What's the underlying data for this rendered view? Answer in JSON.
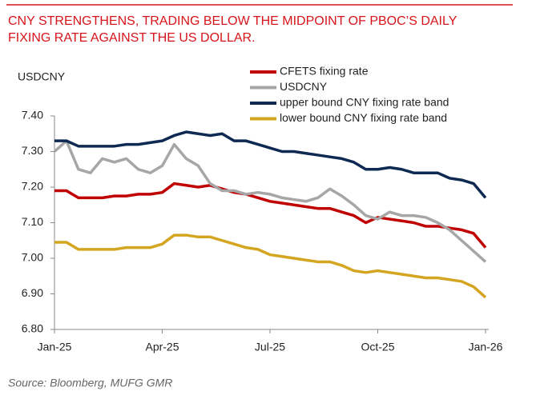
{
  "chart_data": {
    "type": "line",
    "title": [
      "CNY STRENGTHENS, TRADING BELOW THE MIDPOINT OF PBOC’S DAILY",
      "FIXING RATE AGAINST THE US DOLLAR."
    ],
    "y_label": "USDCNY",
    "source": "Source: Bloomberg, MUFG GMR",
    "legend": "top-right",
    "categories": [
      "Jan-25",
      null,
      null,
      null,
      null,
      null,
      null,
      null,
      null,
      "Apr-25",
      null,
      null,
      null,
      null,
      null,
      null,
      null,
      null,
      "Jul-25",
      null,
      null,
      null,
      null,
      null,
      null,
      null,
      null,
      "Oct-25",
      null,
      null,
      null,
      null,
      null,
      null,
      null,
      null,
      "Jan-26"
    ],
    "ylim": [
      6.8,
      7.4
    ],
    "yticks": [
      {
        "value": 6.8,
        "label": "6.80"
      },
      {
        "value": 6.9,
        "label": "6.90"
      },
      {
        "value": 7.0,
        "label": "7.00"
      },
      {
        "value": 7.1,
        "label": "7.10"
      },
      {
        "value": 7.2,
        "label": "7.20"
      },
      {
        "value": 7.3,
        "label": "7.30"
      },
      {
        "value": 7.4,
        "label": "7.40"
      }
    ],
    "series": [
      {
        "name": "CFETS fixing rate",
        "color": "#c00000",
        "values": [
          7.19,
          7.19,
          7.17,
          7.17,
          7.17,
          7.175,
          7.175,
          7.18,
          7.18,
          7.185,
          7.21,
          7.205,
          7.2,
          7.205,
          7.195,
          7.185,
          7.18,
          7.17,
          7.16,
          7.155,
          7.15,
          7.145,
          7.14,
          7.14,
          7.13,
          7.12,
          7.1,
          7.115,
          7.11,
          7.105,
          7.1,
          7.09,
          7.09,
          7.085,
          7.08,
          7.07,
          7.03
        ]
      },
      {
        "name": "USDCNY",
        "color": "#a6a6a6",
        "values": [
          7.3,
          7.33,
          7.25,
          7.24,
          7.28,
          7.27,
          7.28,
          7.25,
          7.24,
          7.26,
          7.32,
          7.28,
          7.26,
          7.21,
          7.19,
          7.19,
          7.18,
          7.185,
          7.18,
          7.17,
          7.165,
          7.16,
          7.17,
          7.195,
          7.175,
          7.15,
          7.12,
          7.11,
          7.13,
          7.12,
          7.12,
          7.115,
          7.1,
          7.08,
          7.05,
          7.02,
          6.99
        ]
      },
      {
        "name": "upper bound CNY fixing rate band",
        "color": "#0e2a52",
        "values": [
          7.33,
          7.33,
          7.315,
          7.315,
          7.315,
          7.315,
          7.32,
          7.32,
          7.325,
          7.33,
          7.345,
          7.355,
          7.35,
          7.345,
          7.35,
          7.33,
          7.33,
          7.32,
          7.31,
          7.3,
          7.3,
          7.295,
          7.29,
          7.285,
          7.28,
          7.27,
          7.25,
          7.25,
          7.255,
          7.25,
          7.24,
          7.24,
          7.24,
          7.225,
          7.22,
          7.21,
          7.17
        ]
      },
      {
        "name": "lower bound CNY fixing rate band",
        "color": "#d4a520",
        "values": [
          7.045,
          7.045,
          7.025,
          7.025,
          7.025,
          7.025,
          7.03,
          7.03,
          7.03,
          7.04,
          7.065,
          7.065,
          7.06,
          7.06,
          7.05,
          7.04,
          7.03,
          7.025,
          7.01,
          7.005,
          7.0,
          6.995,
          6.99,
          6.99,
          6.98,
          6.965,
          6.96,
          6.965,
          6.96,
          6.955,
          6.95,
          6.945,
          6.945,
          6.94,
          6.935,
          6.92,
          6.89
        ]
      }
    ]
  }
}
